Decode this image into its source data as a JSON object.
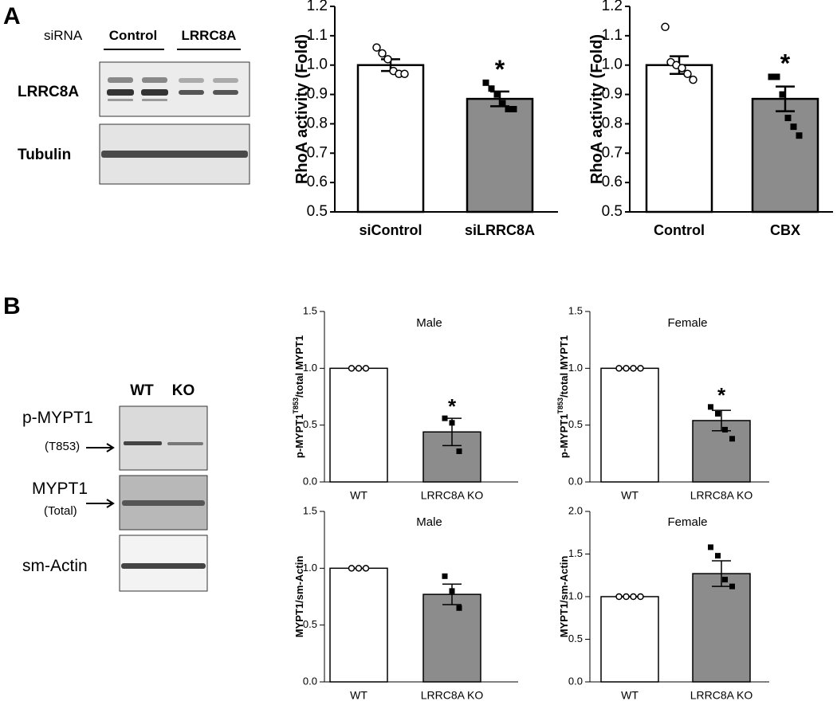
{
  "panel_labels": [
    "A",
    "B"
  ],
  "blots": {
    "a": {
      "header": "siRNA",
      "groups": [
        "Control",
        "LRRC8A"
      ],
      "rows": [
        "LRRC8A",
        "Tubulin"
      ]
    },
    "b": {
      "groups": [
        "WT",
        "KO"
      ],
      "rows": [
        [
          "p-MYPT1",
          "(T853)"
        ],
        [
          "MYPT1",
          "(Total)"
        ],
        [
          "sm-Actin"
        ]
      ]
    }
  },
  "chart_data": [
    {
      "type": "bar",
      "ylabel": "RhoA activity (Fold)",
      "categories": [
        "siControl",
        "siLRRC8A"
      ],
      "values": [
        1.0,
        0.885
      ],
      "errors": [
        0.02,
        0.025
      ],
      "points": [
        [
          1.06,
          1.04,
          1.02,
          0.98,
          0.97,
          0.97
        ],
        [
          0.94,
          0.92,
          0.9,
          0.87,
          0.85,
          0.85
        ]
      ],
      "colors": [
        "#ffffff",
        "#8c8c8c"
      ],
      "markers": [
        "circle",
        "square"
      ],
      "annotations": [
        null,
        "*"
      ],
      "ylim": [
        0.5,
        1.2
      ],
      "yticks": [
        0.5,
        0.6,
        0.7,
        0.8,
        0.9,
        {
          "value": 1.0,
          "label": "1.0"
        },
        1.1,
        1.2
      ]
    },
    {
      "type": "bar",
      "ylabel": "RhoA activity (Fold)",
      "categories": [
        "Control",
        "CBX"
      ],
      "values": [
        1.0,
        0.885
      ],
      "errors": [
        0.03,
        0.042
      ],
      "points": [
        [
          1.13,
          1.01,
          1.0,
          0.99,
          0.97,
          0.95
        ],
        [
          0.96,
          0.96,
          0.9,
          0.82,
          0.79,
          0.76
        ]
      ],
      "colors": [
        "#ffffff",
        "#8c8c8c"
      ],
      "markers": [
        "circle",
        "square"
      ],
      "annotations": [
        null,
        "*"
      ],
      "ylim": [
        0.5,
        1.2
      ],
      "yticks": [
        0.5,
        0.6,
        0.7,
        0.8,
        0.9,
        {
          "value": 1.0,
          "label": "1.0"
        },
        1.1,
        1.2
      ]
    },
    {
      "type": "bar",
      "title": "Male",
      "ylabel": "p-MYPT1",
      "ylabel_sup": "T853",
      "ylabel_end": "/total MYPT1",
      "categories": [
        "WT",
        "LRRC8A KO"
      ],
      "values": [
        1.0,
        0.44
      ],
      "errors": [
        0,
        0.12
      ],
      "points": [
        [
          1.0,
          1.0,
          1.0
        ],
        [
          0.56,
          0.52,
          0.27
        ]
      ],
      "colors": [
        "#ffffff",
        "#8c8c8c"
      ],
      "markers": [
        "circle",
        "square"
      ],
      "annotations": [
        null,
        "*"
      ],
      "ylim": [
        0,
        1.5
      ],
      "yticks": [
        {
          "value": 0,
          "label": "0.0"
        },
        0.5,
        {
          "value": 1.0,
          "label": "1.0"
        },
        1.5
      ]
    },
    {
      "type": "bar",
      "title": "Female",
      "ylabel": "p-MYPT1",
      "ylabel_sup": "T853",
      "ylabel_end": "/total MYPT1",
      "categories": [
        "WT",
        "LRRC8A KO"
      ],
      "values": [
        1.0,
        0.54
      ],
      "errors": [
        0,
        0.09
      ],
      "points": [
        [
          1.0,
          1.0,
          1.0,
          1.0
        ],
        [
          0.66,
          0.6,
          0.46,
          0.38
        ]
      ],
      "colors": [
        "#ffffff",
        "#8c8c8c"
      ],
      "markers": [
        "circle",
        "square"
      ],
      "annotations": [
        null,
        "*"
      ],
      "ylim": [
        0,
        1.5
      ],
      "yticks": [
        {
          "value": 0,
          "label": "0.0"
        },
        0.5,
        {
          "value": 1.0,
          "label": "1.0"
        },
        1.5
      ]
    },
    {
      "type": "bar",
      "title": "Male",
      "ylabel": "MYPT1/sm-Actin",
      "categories": [
        "WT",
        "LRRC8A KO"
      ],
      "values": [
        1.0,
        0.77
      ],
      "errors": [
        0,
        0.09
      ],
      "points": [
        [
          1.0,
          1.0,
          1.0
        ],
        [
          0.93,
          0.8,
          0.65
        ]
      ],
      "colors": [
        "#ffffff",
        "#8c8c8c"
      ],
      "markers": [
        "circle",
        "square"
      ],
      "ylim": [
        0,
        1.5
      ],
      "yticks": [
        {
          "value": 0,
          "label": "0.0"
        },
        0.5,
        {
          "value": 1.0,
          "label": "1.0"
        },
        1.5
      ]
    },
    {
      "type": "bar",
      "title": "Female",
      "ylabel": "MYPT1/sm-Actin",
      "categories": [
        "WT",
        "LRRC8A KO"
      ],
      "values": [
        1.0,
        1.27
      ],
      "errors": [
        0,
        0.15
      ],
      "points": [
        [
          1.0,
          1.0,
          1.0,
          1.0
        ],
        [
          1.58,
          1.48,
          1.2,
          1.12
        ]
      ],
      "colors": [
        "#ffffff",
        "#8c8c8c"
      ],
      "markers": [
        "circle",
        "square"
      ],
      "ylim": [
        0,
        2.0
      ],
      "yticks": [
        {
          "value": 0,
          "label": "0.0"
        },
        0.5,
        {
          "value": 1.0,
          "label": "1.0"
        },
        1.5,
        {
          "value": 2.0,
          "label": "2.0"
        }
      ]
    }
  ]
}
